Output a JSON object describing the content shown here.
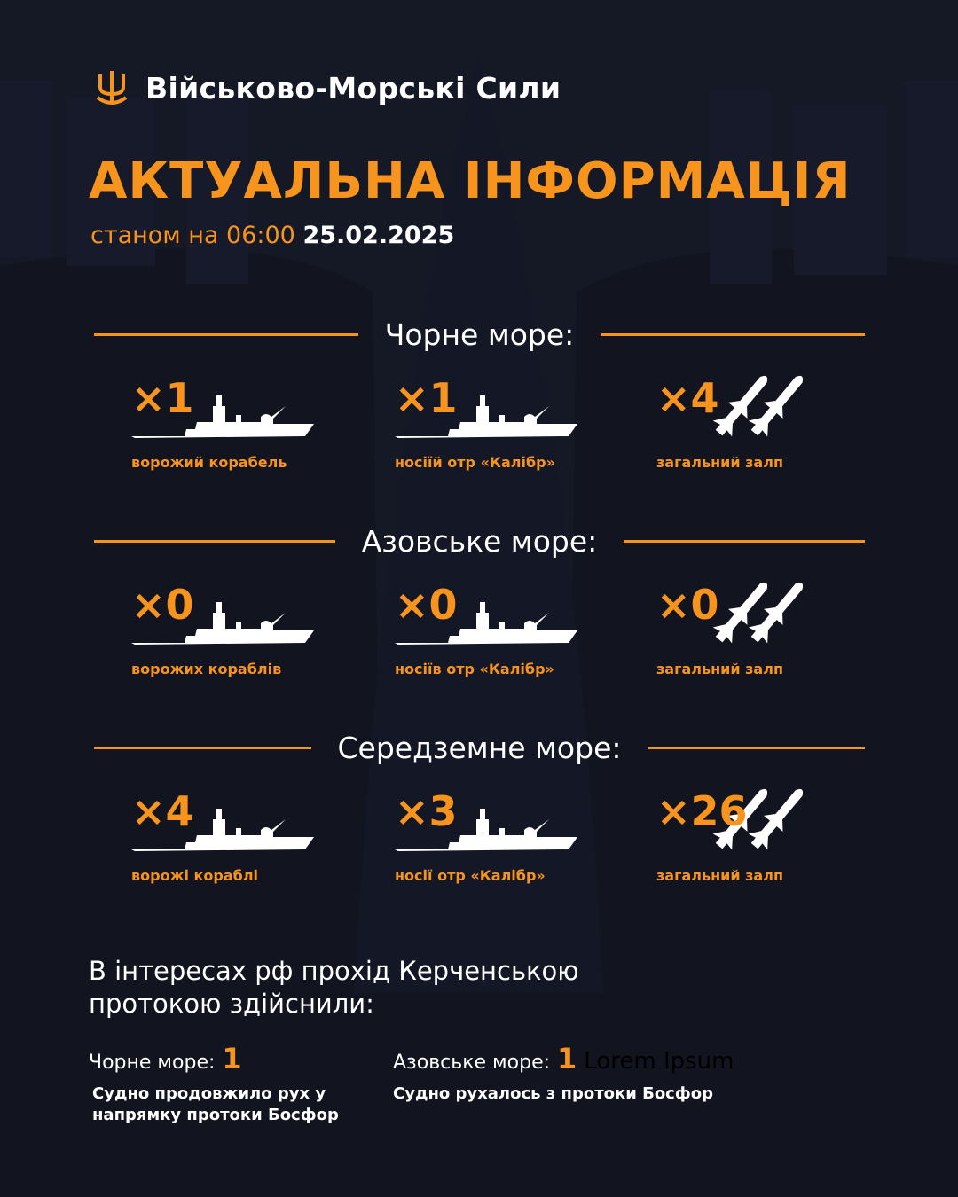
{
  "brand": {
    "name": "Військово-Морські Сили",
    "logo": "trident-anchor-icon"
  },
  "title": "АКТУАЛЬНА ІНФОРМАЦІЯ",
  "date": {
    "prefix": "станом на 06:00",
    "value": "25.02.2025"
  },
  "colors": {
    "background": "#12141f",
    "accent": "#f7941d",
    "text": "#ffffff"
  },
  "sections": [
    {
      "title": "Чорне море:",
      "items": [
        {
          "count": "×1",
          "label": "ворожий корабель",
          "icon": "ship-icon"
        },
        {
          "count": "×1",
          "label": "носіїй отр «Калібр»",
          "icon": "ship-icon"
        },
        {
          "count": "×4",
          "label": "загальний залп",
          "icon": "missiles-icon"
        }
      ]
    },
    {
      "title": "Азовське море:",
      "items": [
        {
          "count": "×0",
          "label": "ворожих кораблів",
          "icon": "ship-icon"
        },
        {
          "count": "×0",
          "label": "носіїв отр «Калібр»",
          "icon": "ship-icon"
        },
        {
          "count": "×0",
          "label": "загальний залп",
          "icon": "missiles-icon"
        }
      ]
    },
    {
      "title": "Середземне море:",
      "items": [
        {
          "count": "×4",
          "label": "ворожі кораблі",
          "icon": "ship-icon"
        },
        {
          "count": "×3",
          "label": "носії отр «Калібр»",
          "icon": "ship-icon"
        },
        {
          "count": "×26",
          "label": "загальний залп",
          "icon": "missiles-icon"
        }
      ]
    }
  ],
  "kerch": {
    "text": "В інтересах рф прохід Керченською протокою здійснили:",
    "black": {
      "label": "Чорне море:",
      "count": "1",
      "desc": "Судно продовжило рух у напрямку протоки Босфор"
    },
    "azov": {
      "label": "Азовське море:",
      "count": "1",
      "extra": "Lorem Ipsum",
      "desc": "Судно рухалось з протоки Босфор"
    }
  }
}
